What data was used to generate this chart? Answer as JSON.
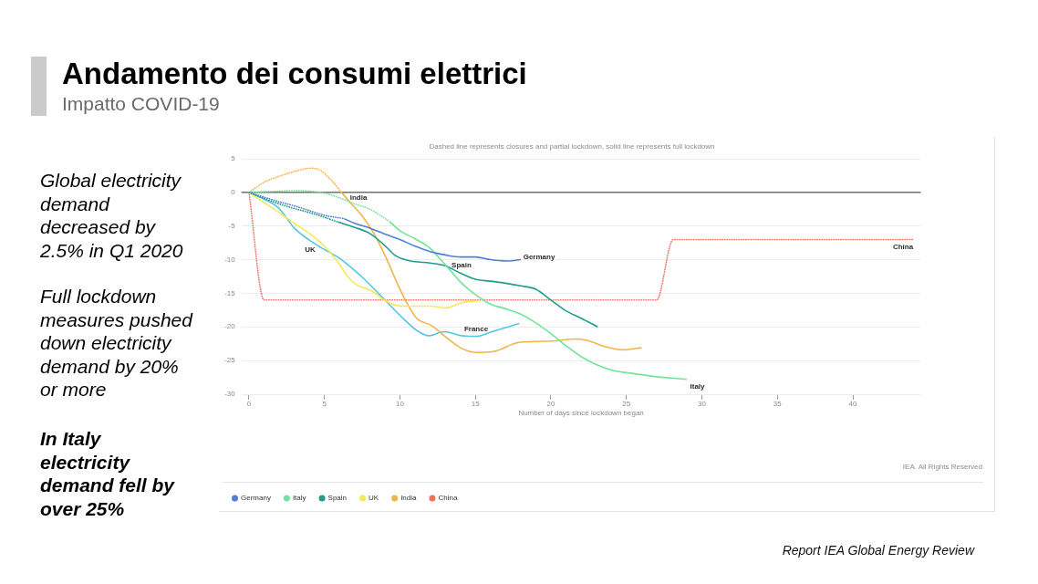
{
  "chart_data": {
    "type": "line",
    "title": "Andamento dei consumi elettrici",
    "subtitle": "Impatto COVID-19",
    "xlabel": "Number of days since lockdown began",
    "annotations": [
      "Dashed line represents closures and partial lockdown, solid line represents full lockdown",
      "Global electricity demand decreased by 2.5% in Q1 2020",
      "Full lockdown measures pushed down electricity demand by 20% or more",
      "In Italy electricity demand fell by over 25%",
      "IEA. All Rights Reserved",
      "Report IEA Global Energy Review",
      "India",
      "UK",
      "Spain",
      "Germany",
      "France",
      "Italy",
      "China"
    ],
    "xlim": [
      -0.5,
      44.5
    ],
    "xticks": [
      0,
      5,
      10,
      15,
      20,
      25,
      30,
      35,
      40
    ],
    "ylim": [
      -30,
      5
    ],
    "yticks": [
      -30,
      -25,
      -20,
      -15,
      -10,
      -5,
      0,
      5
    ],
    "grid": "y",
    "legend": "bottom left",
    "marker": "none",
    "ref_lines": [
      {
        "axis": "y",
        "value": 0,
        "color": "#707070"
      }
    ],
    "series": [
      {
        "name": "Germany",
        "color": "#4f7fd6",
        "x": [
          6.3,
          7,
          8,
          9,
          10,
          11,
          12,
          13,
          14,
          15,
          16,
          17,
          18
        ],
        "values": [
          -3.9,
          -4.6,
          -5.3,
          -6.2,
          -7.0,
          -8.0,
          -8.8,
          -9.3,
          -9.6,
          -9.6,
          -10.0,
          -10.2,
          -10.0
        ]
      },
      {
        "color": "#4f7fd6",
        "line_style": "dotted",
        "x": [
          0,
          1,
          2,
          3,
          4,
          5,
          6.3
        ],
        "values": [
          0,
          -0.7,
          -1.4,
          -2.0,
          -2.7,
          -3.4,
          -3.9
        ]
      },
      {
        "name": "Italy",
        "color": "#74e39a",
        "x": [
          9.3,
          10,
          11,
          12,
          12.7,
          13.3,
          14,
          15,
          16,
          17,
          18,
          19,
          20,
          21,
          22,
          23,
          24,
          25,
          26,
          27,
          28,
          29
        ],
        "values": [
          -4.3,
          -5.7,
          -6.9,
          -8.3,
          -10.0,
          -11.5,
          -13.3,
          -15.2,
          -16.6,
          -17.3,
          -18.1,
          -19.4,
          -21.0,
          -22.8,
          -24.4,
          -25.6,
          -26.4,
          -26.8,
          -27.1,
          -27.4,
          -27.6,
          -27.8
        ]
      },
      {
        "color": "#74e39a",
        "line_style": "dotted",
        "x": [
          0,
          1,
          2,
          3,
          4,
          5,
          6,
          7,
          8,
          9.3
        ],
        "values": [
          0,
          0.1,
          0.2,
          0.3,
          0.2,
          -0.1,
          -0.8,
          -1.7,
          -2.5,
          -4.3
        ]
      },
      {
        "name": "Spain",
        "color": "#1f9e8c",
        "x": [
          5.9,
          7,
          8,
          9,
          9.7,
          10.5,
          11,
          12,
          13,
          14,
          15,
          16,
          17,
          18,
          19,
          20,
          21,
          22,
          23.1
        ],
        "values": [
          -4.4,
          -5.2,
          -6.1,
          -7.9,
          -9.4,
          -10.1,
          -10.3,
          -10.5,
          -10.9,
          -12.0,
          -12.9,
          -13.2,
          -13.5,
          -13.9,
          -14.4,
          -16.0,
          -17.6,
          -18.7,
          -20.0
        ]
      },
      {
        "color": "#1f9e8c",
        "line_style": "dotted",
        "x": [
          0,
          1,
          2,
          3,
          4,
          5,
          5.9
        ],
        "values": [
          0,
          -0.9,
          -1.7,
          -2.4,
          -3.0,
          -3.7,
          -4.4
        ]
      },
      {
        "name": "UK",
        "color": "#f6e85e",
        "x": [
          0,
          1,
          2,
          3,
          4,
          5,
          6,
          6.5,
          7.1,
          8.1,
          9.1,
          10.1,
          11,
          12.1,
          13,
          14.1,
          15.3
        ],
        "values": [
          0,
          -1.5,
          -3.0,
          -4.6,
          -6.1,
          -8.0,
          -10.7,
          -12.4,
          -13.7,
          -14.6,
          -16.2,
          -16.9,
          -16.9,
          -16.9,
          -17.2,
          -16.4,
          -16.1
        ]
      },
      {
        "name": "India",
        "color": "#f2b44a",
        "x": [
          6.1,
          6.7,
          7.5,
          8.3,
          9.1,
          9.9,
          10.5,
          11.1,
          12.1,
          13.1,
          14.1,
          15.1,
          16.1,
          17.9,
          20,
          21.6,
          22.4,
          23.4,
          24.8,
          26
        ],
        "values": [
          0.1,
          -1.5,
          -3.5,
          -6.2,
          -9.8,
          -13.9,
          -16.6,
          -18.7,
          -19.8,
          -21.6,
          -23.2,
          -23.8,
          -23.7,
          -22.3,
          -22.1,
          -21.8,
          -22.0,
          -22.8,
          -23.4,
          -23.1
        ]
      },
      {
        "color": "#f2b44a",
        "line_style": "dotted",
        "x": [
          0,
          1,
          2,
          3,
          4.1,
          4.7,
          5.5,
          6.1
        ],
        "values": [
          0,
          1.5,
          2.4,
          3.1,
          3.6,
          3.3,
          1.7,
          0.1
        ]
      },
      {
        "name": "China",
        "color": "#f0705a",
        "line_style": "dotted",
        "x": [
          0,
          1,
          27,
          28.1,
          44
        ],
        "values": [
          0,
          -16,
          -16,
          -7,
          -7
        ]
      },
      {
        "color": "#55c6e6",
        "x": [
          0,
          1,
          2,
          3,
          4,
          5,
          6,
          7,
          7.5,
          8.7,
          10.1,
          11.1,
          11.9,
          12.9,
          14.1,
          15.1,
          16.1,
          17.9
        ],
        "values": [
          0,
          -1.0,
          -2.4,
          -5.3,
          -7.1,
          -8.5,
          -9.8,
          -11.6,
          -12.6,
          -15.3,
          -18.5,
          -20.5,
          -21.3,
          -20.7,
          -21.3,
          -21.4,
          -20.7,
          -19.5
        ]
      }
    ]
  }
}
